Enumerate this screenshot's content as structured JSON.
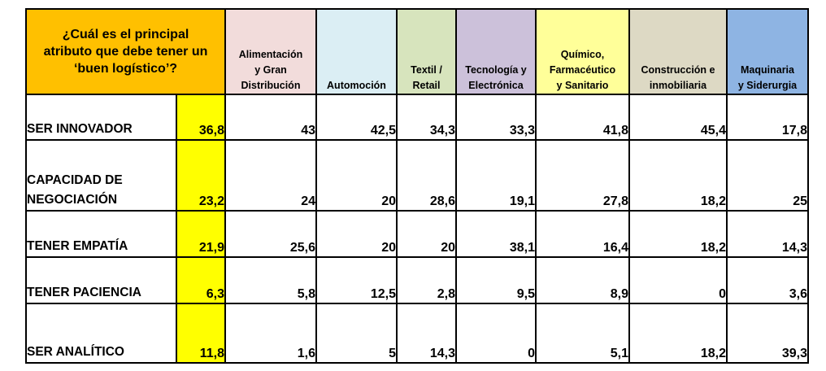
{
  "chart_data": {
    "type": "table",
    "title": "¿Cuál es el principal\natributo que debe tener un\n‘buen logístico’?",
    "columns": [
      {
        "label": "",
        "color": "#ffff00"
      },
      {
        "label": "Alimentación\ny Gran\nDistribución",
        "color": "#f2dcdb"
      },
      {
        "label": "Automoción",
        "color": "#dbeef4"
      },
      {
        "label": "Textil /\nRetail",
        "color": "#d7e4bd"
      },
      {
        "label": "Tecnología y\nElectrónica",
        "color": "#ccc1da"
      },
      {
        "label": "Químico,\nFarmacéutico\ny Sanitario",
        "color": "#ffff99"
      },
      {
        "label": "Construcción e\ninmobiliaria",
        "color": "#ddd9c4"
      },
      {
        "label": "Maquinaria\ny Siderurgia",
        "color": "#8eb4e3"
      }
    ],
    "title_color": "#ffc000",
    "rows": [
      {
        "label": "SER INNOVADOR",
        "values": [
          "36,8",
          "43",
          "42,5",
          "34,3",
          "33,3",
          "41,8",
          "45,4",
          "17,8"
        ]
      },
      {
        "label": "CAPACIDAD DE\nNEGOCIACIÓN",
        "values": [
          "23,2",
          "24",
          "20",
          "28,6",
          "19,1",
          "27,8",
          "18,2",
          "25"
        ]
      },
      {
        "label": "TENER EMPATÍA",
        "values": [
          "21,9",
          "25,6",
          "20",
          "20",
          "38,1",
          "16,4",
          "18,2",
          "14,3"
        ]
      },
      {
        "label": "TENER PACIENCIA",
        "values": [
          "6,3",
          "5,8",
          "12,5",
          "2,8",
          "9,5",
          "8,9",
          "0",
          "3,6"
        ]
      },
      {
        "label": "SER ANALÍTICO",
        "values": [
          "11,8",
          "1,6",
          "5",
          "14,3",
          "0",
          "5,1",
          "18,2",
          "39,3"
        ]
      }
    ]
  }
}
